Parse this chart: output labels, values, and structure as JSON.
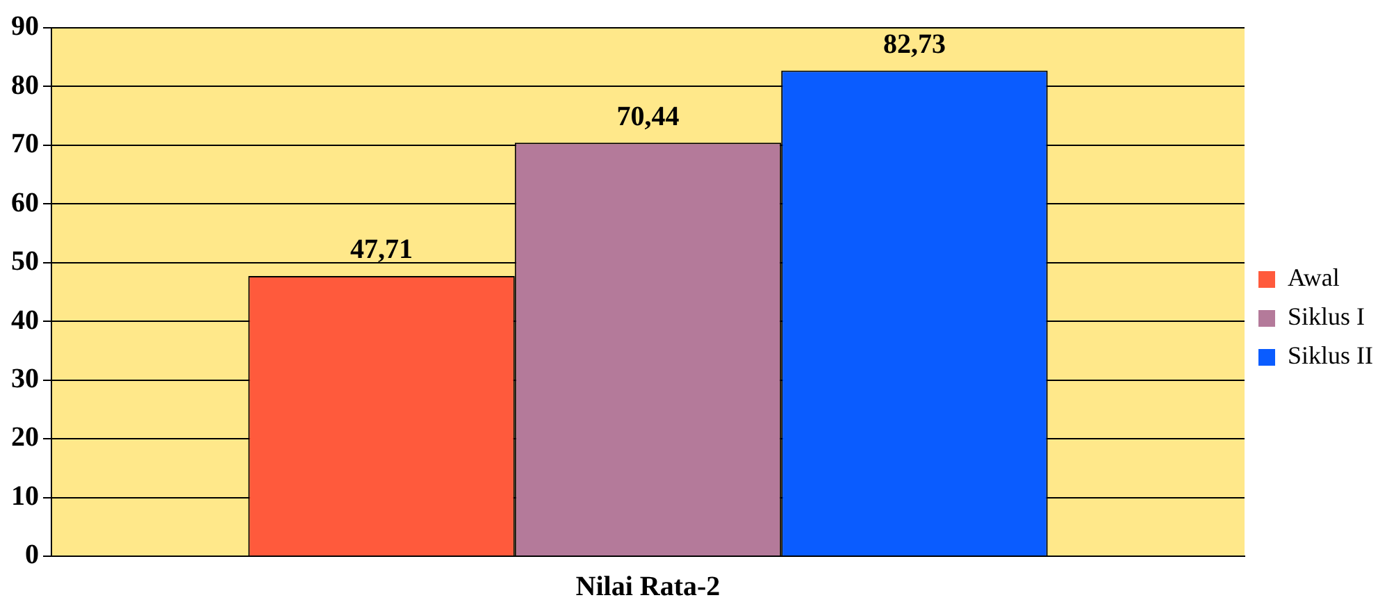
{
  "chart_data": {
    "type": "bar",
    "categories": [
      "Nilai Rata-2"
    ],
    "series": [
      {
        "name": "Awal",
        "color": "#ff5a3c",
        "values": [
          47.71
        ],
        "value_labels": [
          "47,71"
        ]
      },
      {
        "name": "Siklus I",
        "color": "#b47a9a",
        "values": [
          70.44
        ],
        "value_labels": [
          "70,44"
        ]
      },
      {
        "name": "Siklus II",
        "color": "#0a5cff",
        "values": [
          82.73
        ],
        "value_labels": [
          "82,73"
        ]
      }
    ],
    "ylim": [
      0,
      90
    ],
    "yticks": [
      0,
      10,
      20,
      30,
      40,
      50,
      60,
      70,
      80,
      90
    ],
    "grid": "y",
    "legend": "right"
  }
}
